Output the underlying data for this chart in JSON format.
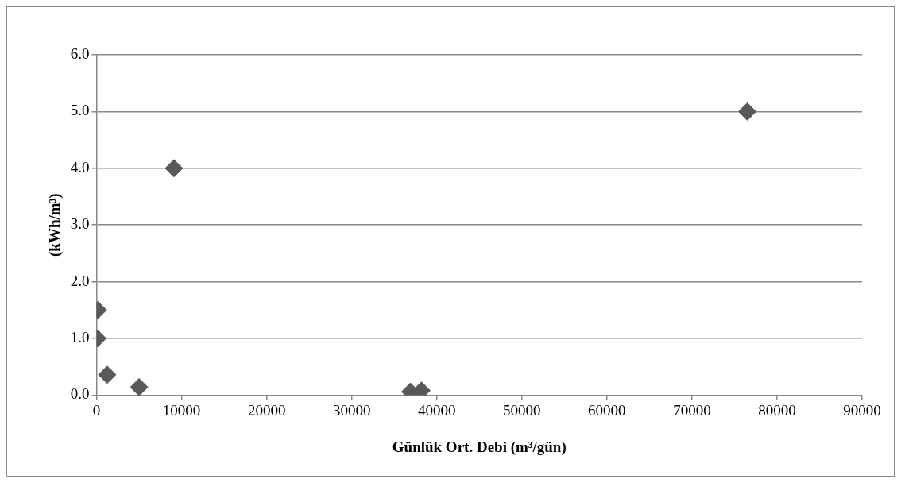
{
  "chart_data": {
    "type": "scatter",
    "xlabel": "Günlük Ort. Debi (m³/gün)",
    "ylabel": "(kWh/m³)",
    "x": [
      150,
      100,
      1250,
      5000,
      9100,
      36900,
      38200,
      76500
    ],
    "values": [
      1.5,
      1.0,
      0.36,
      0.14,
      4.0,
      0.06,
      0.08,
      5.0
    ],
    "color": "#595959",
    "marker": "diamond",
    "xlim": [
      0,
      90000
    ],
    "xticks": [
      0,
      10000,
      20000,
      30000,
      40000,
      50000,
      60000,
      70000,
      80000,
      90000
    ],
    "ylim": [
      0,
      6
    ],
    "yticks": [
      {
        "value": 0,
        "label": "0.0"
      },
      {
        "value": 1,
        "label": "1.0"
      },
      {
        "value": 2,
        "label": "2.0"
      },
      {
        "value": 3,
        "label": "3.0"
      },
      {
        "value": 4,
        "label": "4.0"
      },
      {
        "value": 5,
        "label": "5.0"
      },
      {
        "value": 6,
        "label": "6.0"
      }
    ],
    "grid": "y",
    "legend": false
  }
}
